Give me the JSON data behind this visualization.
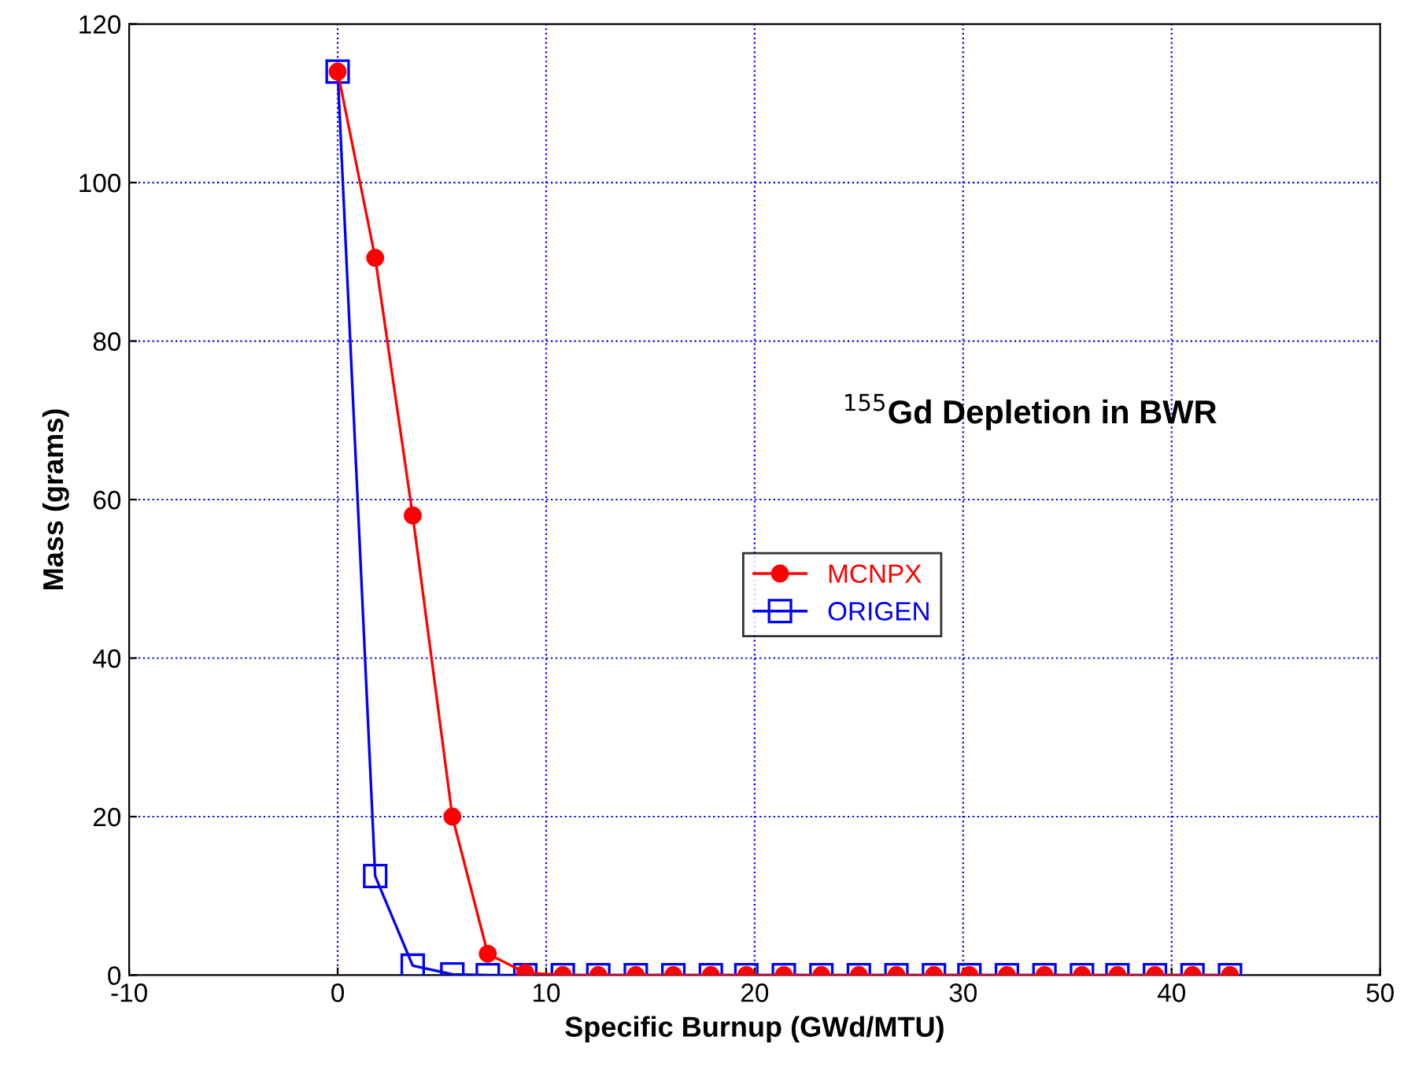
{
  "chart_data": {
    "type": "line",
    "title": "$^{155}$Gd Depletion in BWR",
    "xlabel": "Specific Burnup (GWd/MTU)",
    "ylabel": "Mass (grams)",
    "x": [
      0,
      1.8,
      3.6,
      5.5,
      7.2,
      9.0,
      10.8,
      12.5,
      14.3,
      16.1,
      17.9,
      19.6,
      21.4,
      23.2,
      25.0,
      26.8,
      28.6,
      30.3,
      32.1,
      33.9,
      35.7,
      37.4,
      39.2,
      41.0,
      42.8
    ],
    "series": [
      {
        "name": "MCNPX",
        "color": "#ff0000",
        "marker": "circle",
        "values": [
          114,
          90.5,
          58,
          20,
          2.7,
          0.3,
          0,
          0,
          0,
          0,
          0,
          0,
          0,
          0,
          0,
          0,
          0,
          0,
          0,
          0,
          0,
          0,
          0,
          0,
          0
        ]
      },
      {
        "name": "ORIGEN",
        "color": "#0000ff",
        "marker": "square",
        "values": [
          114,
          12.5,
          1.2,
          0.1,
          0,
          0,
          0,
          0,
          0,
          0,
          0,
          0,
          0,
          0,
          0,
          0,
          0,
          0,
          0,
          0,
          0,
          0,
          0,
          0,
          0
        ]
      }
    ],
    "xlim": [
      -10,
      50
    ],
    "xticks": [
      -10,
      0,
      10,
      20,
      30,
      40,
      50
    ],
    "ylim": [
      0,
      120
    ],
    "yticks": [
      0,
      20,
      40,
      60,
      80,
      100,
      120
    ],
    "grid": true,
    "legend": "center",
    "line_style": "solid"
  }
}
